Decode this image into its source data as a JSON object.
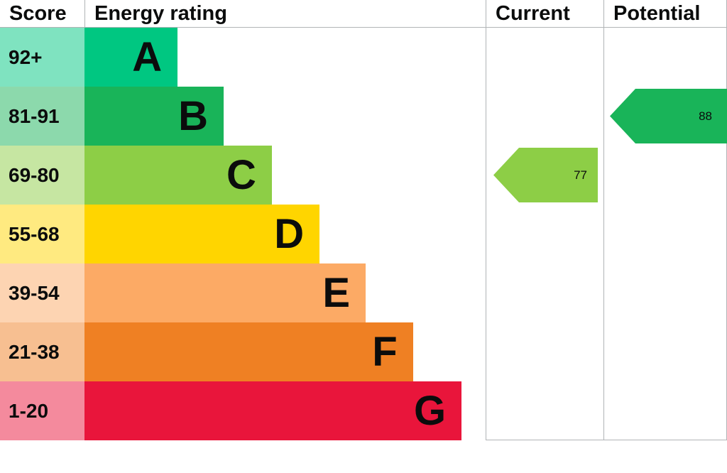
{
  "header": {
    "score": "Score",
    "energy_rating": "Energy rating",
    "current": "Current",
    "potential": "Potential"
  },
  "chart_data": {
    "type": "bar",
    "title": "Energy rating",
    "legend_position": "none",
    "bands": [
      {
        "score_range": "92+",
        "letter": "A",
        "bar_color": "#00c781",
        "score_bg": "#7fe3c0",
        "bar_width_pct": 23.2
      },
      {
        "score_range": "81-91",
        "letter": "B",
        "bar_color": "#19b459",
        "score_bg": "#8cd9ac",
        "bar_width_pct": 34.7
      },
      {
        "score_range": "69-80",
        "letter": "C",
        "bar_color": "#8dce46",
        "score_bg": "#c6e6a2",
        "bar_width_pct": 46.7
      },
      {
        "score_range": "55-68",
        "letter": "D",
        "bar_color": "#ffd500",
        "score_bg": "#ffea80",
        "bar_width_pct": 58.6
      },
      {
        "score_range": "39-54",
        "letter": "E",
        "bar_color": "#fcaa65",
        "score_bg": "#fdd4b2",
        "bar_width_pct": 70.1
      },
      {
        "score_range": "21-38",
        "letter": "F",
        "bar_color": "#ef8023",
        "score_bg": "#f7bf91",
        "bar_width_pct": 81.9
      },
      {
        "score_range": "1-20",
        "letter": "G",
        "bar_color": "#e9153b",
        "score_bg": "#f48a9d",
        "bar_width_pct": 94.0
      }
    ],
    "current": {
      "value": 77,
      "band": "C",
      "band_index": 2,
      "color": "#8dce46"
    },
    "potential": {
      "value": 88,
      "band": "B",
      "band_index": 1,
      "color": "#19b459"
    }
  }
}
